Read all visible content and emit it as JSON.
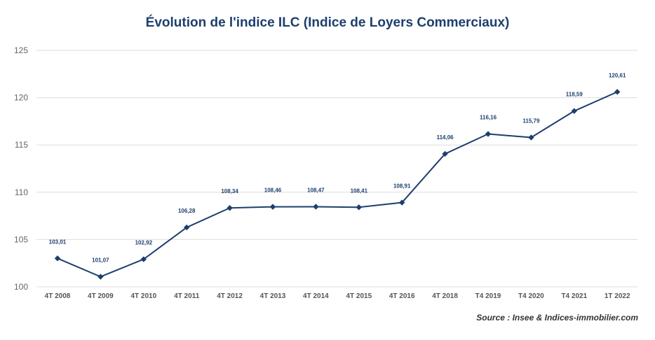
{
  "chart_data": {
    "type": "line",
    "title": "Évolution de l'indice ILC (Indice de Loyers Commerciaux)",
    "source": "Source : Insee & Indices-immobilier.com",
    "categories": [
      "4T 2008",
      "4T 2009",
      "4T 2010",
      "4T 2011",
      "4T 2012",
      "4T 2013",
      "4T 2014",
      "4T 2015",
      "4T 2016",
      "4T 2018",
      "T4 2019",
      "T4 2020",
      "T4 2021",
      "1T 2022"
    ],
    "series": [
      {
        "values": [
          103.01,
          101.07,
          102.92,
          106.28,
          108.34,
          108.46,
          108.47,
          108.41,
          108.91,
          114.06,
          116.16,
          115.79,
          118.59,
          120.61
        ],
        "labels": [
          "103,01",
          "101,07",
          "102,92",
          "106,28",
          "108,34",
          "108,46",
          "108,47",
          "108,41",
          "108,91",
          "114,06",
          "116,16",
          "115,79",
          "118,59",
          "120,61"
        ]
      }
    ],
    "ylim": [
      100,
      125
    ],
    "yticks": [
      100,
      105,
      110,
      115,
      120,
      125
    ],
    "grid": true,
    "colors": {
      "line": "#1d3f6e",
      "grid": "#dddddd",
      "title": "#1d3f6e"
    }
  }
}
